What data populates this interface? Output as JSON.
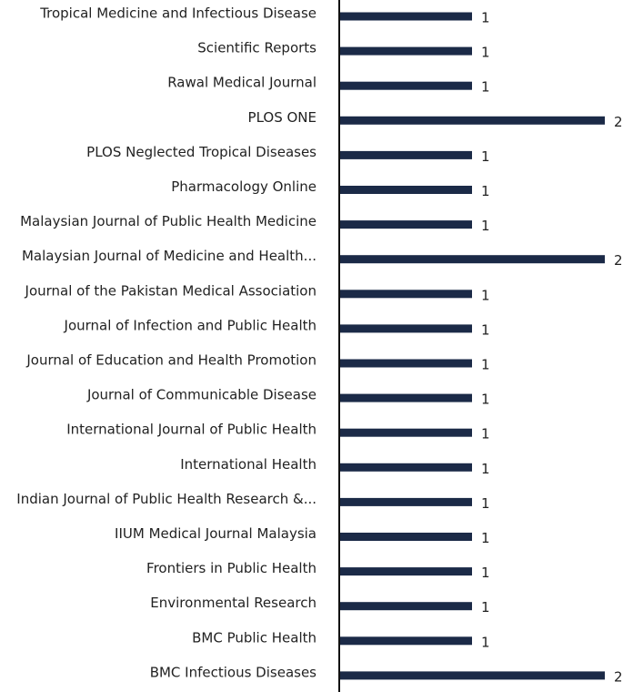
{
  "chart_data": {
    "type": "bar",
    "orientation": "horizontal",
    "categories": [
      "Tropical Medicine and Infectious Disease",
      "Scientific Reports",
      "Rawal Medical Journal",
      "PLOS ONE",
      "PLOS Neglected Tropical Diseases",
      "Pharmacology Online",
      "Malaysian Journal of Public Health Medicine",
      "Malaysian Journal of Medicine and Health...",
      "Journal of the Pakistan Medical Association",
      "Journal of Infection and Public Health",
      "Journal of Education and Health Promotion",
      "Journal of Communicable Disease",
      "International Journal of Public Health",
      "International Health",
      "Indian Journal of Public Health Research &...",
      "IIUM Medical Journal Malaysia",
      "Frontiers in Public Health",
      "Environmental Research",
      "BMC Public Health",
      "BMC Infectious Diseases"
    ],
    "values": [
      1,
      1,
      1,
      2,
      1,
      1,
      1,
      2,
      1,
      1,
      1,
      1,
      1,
      1,
      1,
      1,
      1,
      1,
      1,
      2
    ],
    "xlim": [
      0,
      2
    ],
    "bar_color": "#1b2a47",
    "grid": false,
    "legend": "none"
  }
}
